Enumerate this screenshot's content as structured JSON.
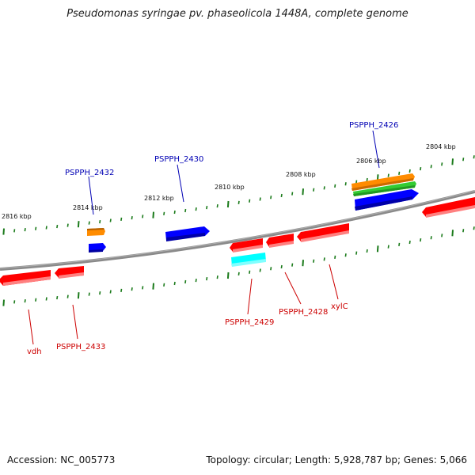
{
  "title": "Pseudomonas syringae pv. phaseolicola 1448A, complete genome",
  "accession_text": "Accession: NC_005773",
  "genome_info_text": "Topology: circular; Length: 5,928,787 bp; Genes: 5,066",
  "colors": {
    "backbone": "#8a8a8a",
    "tick": "#1a7a1a",
    "forward_label": "#0000b4",
    "reverse_label": "#cc0000",
    "red": "#ff0000",
    "blue": "#0000ff",
    "orange": "#ff8c00",
    "green": "#33cc33",
    "cyan": "#00ffff"
  },
  "ruler": {
    "unit": "kbp",
    "labels": [
      "2816 kbp",
      "2814 kbp",
      "2812 kbp",
      "2810 kbp",
      "2808 kbp",
      "2806 kbp",
      "2804 kbp"
    ]
  },
  "genes": {
    "forward": [
      {
        "id": "PSPPH_2432",
        "label": "PSPPH_2432",
        "color": "orange"
      },
      {
        "id": "PSPPH_2430",
        "label": "PSPPH_2430",
        "color": "blue"
      },
      {
        "id": "PSPPH_2426",
        "label": "PSPPH_2426",
        "color": "orange"
      }
    ],
    "reverse": [
      {
        "id": "vdh",
        "label": "vdh",
        "color": "red"
      },
      {
        "id": "PSPPH_2433",
        "label": "PSPPH_2433",
        "color": "red"
      },
      {
        "id": "PSPPH_2429",
        "label": "PSPPH_2429",
        "color": "red"
      },
      {
        "id": "PSPPH_2428",
        "label": "PSPPH_2428",
        "color": "red"
      },
      {
        "id": "xylC",
        "label": "xylC",
        "color": "red"
      }
    ]
  }
}
